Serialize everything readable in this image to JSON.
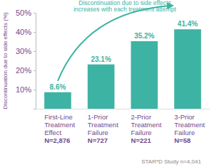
{
  "chart_data": {
    "type": "bar",
    "categories": [
      "First-Line\nTreatment\nEffect\nN=2,876",
      "1-Prior\nTreatment\nFailure\nN=727",
      "2-Prior\nTreatment\nFailure\nN=221",
      "3-Prior\nTreatment\nFailure\nN=58"
    ],
    "values": [
      8.6,
      23.1,
      35.2,
      41.4
    ],
    "value_labels": [
      "8.6%",
      "23.1%",
      "35.2%",
      "41.4%"
    ],
    "data_labels": true,
    "color": "#3db3a3",
    "ylim": [
      0,
      50
    ],
    "yticks": [
      {
        "value": 10,
        "label": "10%"
      },
      {
        "value": 20,
        "label": "20%"
      },
      {
        "value": 30,
        "label": "30%"
      },
      {
        "value": 40,
        "label": "40%"
      },
      {
        "value": 50,
        "label": "50%"
      }
    ],
    "y_label": "Discontinuation due to side effects (%)",
    "annotation": "Discontinuation due to side effects\nincreases with each treatment attempt",
    "footnote": "STAR*D Study n=4,041",
    "grid": false
  }
}
